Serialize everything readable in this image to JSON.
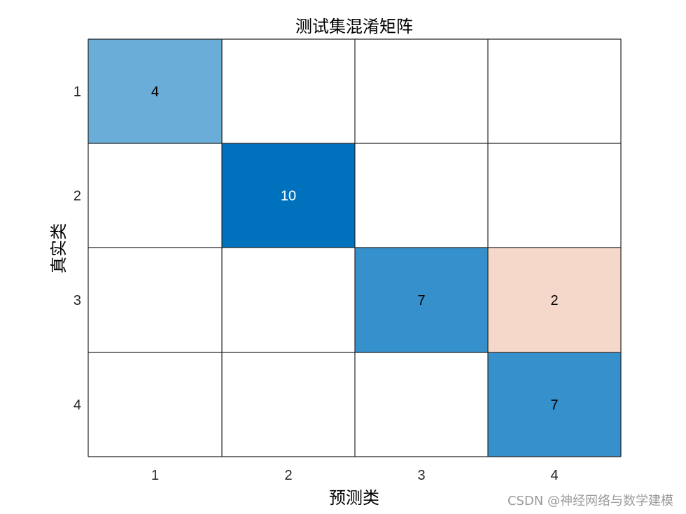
{
  "chart_data": {
    "type": "heatmap",
    "title": "测试集混淆矩阵",
    "xlabel": "预测类",
    "ylabel": "真实类",
    "x_categories": [
      "1",
      "2",
      "3",
      "4"
    ],
    "y_categories": [
      "1",
      "2",
      "3",
      "4"
    ],
    "cells": [
      {
        "row": 1,
        "col": 1,
        "value": 4,
        "kind": "correct"
      },
      {
        "row": 2,
        "col": 2,
        "value": 10,
        "kind": "correct"
      },
      {
        "row": 3,
        "col": 3,
        "value": 7,
        "kind": "correct"
      },
      {
        "row": 3,
        "col": 4,
        "value": 2,
        "kind": "error"
      },
      {
        "row": 4,
        "col": 4,
        "value": 7,
        "kind": "correct"
      }
    ],
    "colors": {
      "correct_low": "#FFFFFF",
      "correct_high": "#0072BD",
      "error": "#F6D8CA",
      "grid": "#262626",
      "text_dark": "#000000",
      "text_light": "#FFFFFF"
    }
  },
  "watermark": "CSDN @神经网络与数学建模"
}
